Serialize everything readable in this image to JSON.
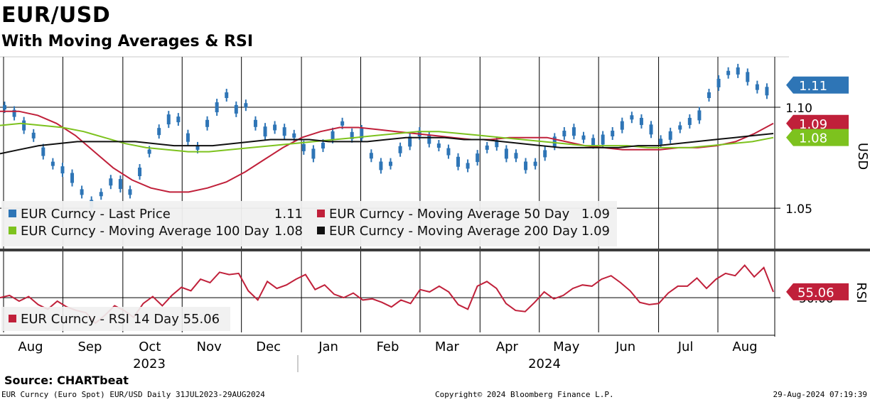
{
  "header": {
    "title": "EUR/USD",
    "subtitle": "With Moving Averages & RSI"
  },
  "chart_data": [
    {
      "type": "line",
      "panel": "price",
      "axis_label": "USD",
      "ylim": [
        1.03,
        1.125
      ],
      "yticks": [
        {
          "value": 1.1,
          "label": "1.10"
        },
        {
          "value": 1.05,
          "label": "1.05"
        }
      ],
      "months": [
        {
          "label": "Aug",
          "t": 0.0
        },
        {
          "label": "Sep",
          "t": 0.083
        },
        {
          "label": "Oct",
          "t": 0.167
        },
        {
          "label": "Nov",
          "t": 0.25
        },
        {
          "label": "Dec",
          "t": 0.333
        },
        {
          "label": "Jan",
          "t": 0.417
        },
        {
          "label": "Feb",
          "t": 0.5
        },
        {
          "label": "Mar",
          "t": 0.583
        },
        {
          "label": "Apr",
          "t": 0.667
        },
        {
          "label": "May",
          "t": 0.75
        },
        {
          "label": "Jun",
          "t": 0.833
        },
        {
          "label": "Jul",
          "t": 0.917
        },
        {
          "label": "Aug",
          "t": 1.0
        }
      ],
      "years": [
        {
          "label": "2023"
        },
        {
          "label": "2024"
        }
      ],
      "series": [
        {
          "name": "EUR Curncy - Last Price",
          "color": "#2e75b6",
          "last": "1.11",
          "kind": "bars",
          "values": [
            1.1,
            1.097,
            1.091,
            1.086,
            1.078,
            1.072,
            1.069,
            1.065,
            1.058,
            1.052,
            1.057,
            1.063,
            1.062,
            1.058,
            1.068,
            1.078,
            1.088,
            1.094,
            1.094,
            1.085,
            1.08,
            1.092,
            1.1,
            1.106,
            1.099,
            1.101,
            1.092,
            1.088,
            1.09,
            1.088,
            1.086,
            1.08,
            1.077,
            1.081,
            1.086,
            1.092,
            1.086,
            1.087,
            1.076,
            1.071,
            1.072,
            1.079,
            1.083,
            1.087,
            1.084,
            1.081,
            1.078,
            1.073,
            1.071,
            1.075,
            1.08,
            1.082,
            1.077,
            1.076,
            1.071,
            1.072,
            1.077,
            1.083,
            1.087,
            1.088,
            1.085,
            1.083,
            1.084,
            1.087,
            1.091,
            1.095,
            1.093,
            1.089,
            1.083,
            1.086,
            1.09,
            1.093,
            1.096,
            1.106,
            1.112,
            1.117,
            1.118,
            1.115,
            1.11,
            1.108
          ]
        },
        {
          "name": "EUR Curncy - Moving Average 50 Day",
          "color": "#c0203a",
          "last": "1.09",
          "values": [
            1.098,
            1.098,
            1.096,
            1.092,
            1.086,
            1.078,
            1.07,
            1.064,
            1.06,
            1.058,
            1.058,
            1.06,
            1.063,
            1.068,
            1.074,
            1.08,
            1.085,
            1.088,
            1.09,
            1.09,
            1.089,
            1.088,
            1.087,
            1.086,
            1.085,
            1.084,
            1.084,
            1.085,
            1.085,
            1.085,
            1.083,
            1.081,
            1.08,
            1.079,
            1.079,
            1.079,
            1.08,
            1.08,
            1.081,
            1.083,
            1.087,
            1.092
          ]
        },
        {
          "name": "EUR Curncy - Moving Average 100 Day",
          "color": "#7dc21e",
          "last": "1.08",
          "values": [
            1.091,
            1.092,
            1.091,
            1.09,
            1.088,
            1.085,
            1.082,
            1.08,
            1.079,
            1.078,
            1.078,
            1.079,
            1.08,
            1.081,
            1.082,
            1.083,
            1.084,
            1.085,
            1.086,
            1.087,
            1.088,
            1.088,
            1.087,
            1.086,
            1.085,
            1.084,
            1.083,
            1.082,
            1.081,
            1.081,
            1.081,
            1.08,
            1.08,
            1.08,
            1.081,
            1.082,
            1.083,
            1.085
          ]
        },
        {
          "name": "EUR Curncy - Moving Average 200 Day",
          "color": "#111111",
          "last": "1.09",
          "values": [
            1.077,
            1.079,
            1.081,
            1.082,
            1.083,
            1.083,
            1.083,
            1.083,
            1.082,
            1.081,
            1.081,
            1.081,
            1.082,
            1.083,
            1.084,
            1.084,
            1.084,
            1.083,
            1.083,
            1.083,
            1.084,
            1.085,
            1.085,
            1.085,
            1.084,
            1.084,
            1.083,
            1.082,
            1.081,
            1.08,
            1.08,
            1.08,
            1.08,
            1.081,
            1.081,
            1.082,
            1.083,
            1.084,
            1.085,
            1.086,
            1.087
          ]
        }
      ],
      "value_tags": [
        {
          "label": "1.11",
          "value": 1.111,
          "color": "#2e75b6"
        },
        {
          "label": "1.09",
          "value": 1.092,
          "color": "#c0203a"
        },
        {
          "label": "1.08",
          "value": 1.085,
          "color": "#7dc21e"
        }
      ],
      "legend": [
        {
          "name": "EUR Curncy - Last Price",
          "value": "1.11",
          "color": "#2e75b6"
        },
        {
          "name": "EUR Curncy - Moving Average 50 Day",
          "value": "1.09",
          "color": "#c0203a"
        },
        {
          "name": "EUR Curncy - Moving Average 100 Day",
          "value": "1.08",
          "color": "#7dc21e"
        },
        {
          "name": "EUR Curncy - Moving Average 200 Day",
          "value": "1.09",
          "color": "#111111"
        }
      ]
    },
    {
      "type": "line",
      "panel": "rsi",
      "axis_label": "RSI",
      "ylim": [
        20,
        90
      ],
      "yticks": [
        {
          "value": 50,
          "label": "50.00"
        }
      ],
      "series": [
        {
          "name": "EUR Curncy - RSI 14 Day",
          "color": "#c0203a",
          "last": "55.06",
          "values": [
            50,
            52,
            47,
            51,
            44,
            40,
            47,
            42,
            39,
            37,
            28,
            35,
            43,
            39,
            33,
            45,
            51,
            43,
            52,
            59,
            56,
            66,
            63,
            72,
            70,
            71,
            56,
            48,
            64,
            58,
            61,
            66,
            70,
            57,
            61,
            53,
            50,
            54,
            48,
            49,
            46,
            42,
            48,
            45,
            57,
            55,
            60,
            55,
            44,
            40,
            60,
            64,
            58,
            45,
            39,
            38,
            46,
            55,
            49,
            52,
            58,
            61,
            60,
            66,
            69,
            63,
            56,
            46,
            44,
            45,
            54,
            60,
            60,
            67,
            58,
            66,
            71,
            69,
            78,
            68,
            76,
            55
          ]
        }
      ],
      "value_tags": [
        {
          "label": "55.06",
          "value": 55.06,
          "color": "#c0203a"
        }
      ],
      "legend": [
        {
          "name": "EUR Curncy - RSI 14 Day",
          "value": "55.06",
          "color": "#c0203a"
        }
      ]
    }
  ],
  "source": "Source: CHARTbeat",
  "footer": {
    "left": "EUR Curncy (Euro Spot) EUR/USD  Daily 31JUL2023-29AUG2024",
    "center": "Copyright© 2024 Bloomberg Finance L.P.",
    "right": "29-Aug-2024 07:19:39"
  }
}
